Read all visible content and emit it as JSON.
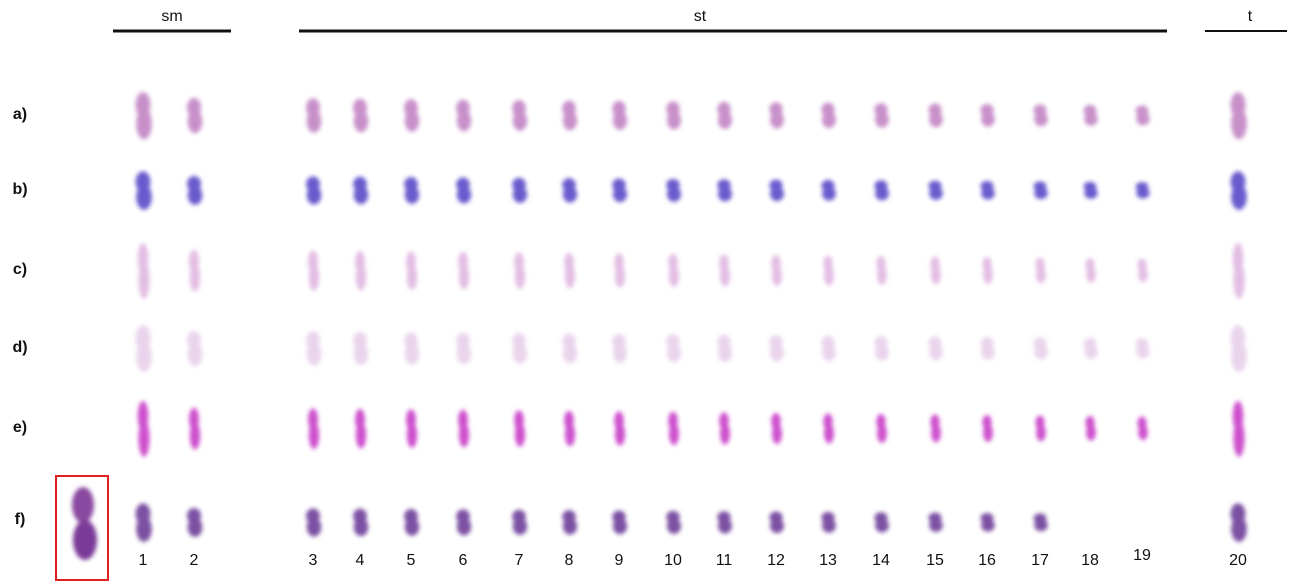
{
  "groups": [
    {
      "label": "sm"
    },
    {
      "label": "st"
    },
    {
      "label": "t"
    }
  ],
  "rows": [
    {
      "label": "a)"
    },
    {
      "label": "b)"
    },
    {
      "label": "c)"
    },
    {
      "label": "d)"
    },
    {
      "label": "e)"
    },
    {
      "label": "f)"
    }
  ],
  "columns": [
    "1",
    "2",
    "3",
    "4",
    "5",
    "6",
    "7",
    "8",
    "9",
    "10",
    "11",
    "12",
    "13",
    "14",
    "15",
    "16",
    "17",
    "18",
    "19",
    "20"
  ]
}
